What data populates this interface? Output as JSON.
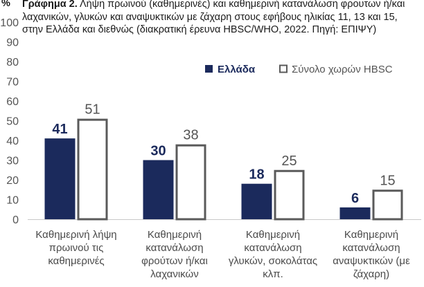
{
  "chart_data": {
    "type": "bar",
    "title_prefix": "Γράφημα 2.",
    "title": "Λήψη πρωινού (καθημερινές) και καθημερινή κατανάλωση φρουτων ή/και λαχανικών, γλυκών και αναψυκτικών με ζάχαρη στους εφήβους ηλικίας 11, 13 και 15, στην Ελλάδα και διεθνώς (διακρατική έρευνα HBSC/WHO, 2022. Πηγή: ΕΠΙΨΥ)",
    "ylabel": "%",
    "ylim": [
      0,
      100
    ],
    "yticks": [
      0,
      10,
      20,
      30,
      40,
      50,
      60,
      70,
      80,
      90,
      100
    ],
    "grid": false,
    "legend_position": "top-right",
    "categories": [
      [
        "Καθημερινή λήψη",
        "πρωινού τις",
        "καθημερινές"
      ],
      [
        "Καθημερινή",
        "κατανάλωση",
        "φρούτων ή/και",
        "λαχανικών"
      ],
      [
        "Καθημερινή",
        "κατανάλωση",
        "γλυκών, σοκολάτας",
        "κλπ."
      ],
      [
        "Καθημερινή",
        "κατανάλωση",
        "αναψυκτικών (με",
        "ζάχαρη)"
      ]
    ],
    "series": [
      {
        "name": "Ελλάδα",
        "values": [
          41,
          30,
          18,
          6
        ],
        "color": "#1b2a5c",
        "style": "filled"
      },
      {
        "name": "Σύνολο χωρών HBSC",
        "values": [
          51,
          38,
          25,
          15
        ],
        "color": "#5a5a5a",
        "style": "outlined"
      }
    ]
  }
}
